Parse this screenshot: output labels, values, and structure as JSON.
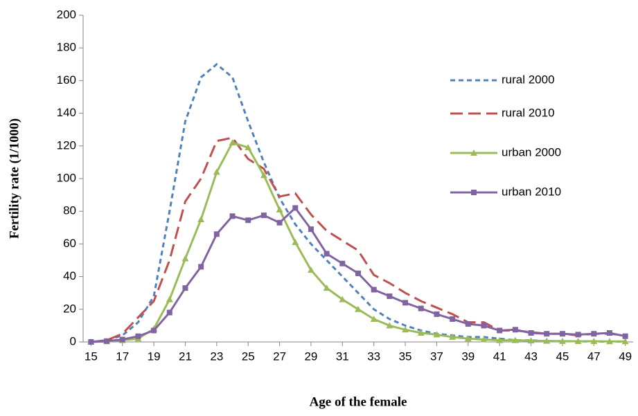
{
  "chart_data": {
    "type": "line",
    "x_label": "Age of the female",
    "y_label": "Fertility rate (1/1000)",
    "x": [
      15,
      16,
      17,
      18,
      19,
      20,
      21,
      22,
      23,
      24,
      25,
      26,
      27,
      28,
      29,
      30,
      31,
      32,
      33,
      34,
      35,
      36,
      37,
      38,
      39,
      40,
      41,
      42,
      43,
      44,
      45,
      46,
      47,
      48,
      49
    ],
    "xlim": [
      14.5,
      49.5
    ],
    "xticks": [
      15,
      17,
      19,
      21,
      23,
      25,
      27,
      29,
      31,
      33,
      35,
      37,
      39,
      41,
      43,
      45,
      47,
      49
    ],
    "ylim": [
      0,
      200
    ],
    "yticks": [
      0,
      20,
      40,
      60,
      80,
      100,
      120,
      140,
      160,
      180,
      200
    ],
    "legend": "right",
    "series": [
      {
        "name": "rural 2000",
        "color": "#4f81bd",
        "dash": "short",
        "marker": "none",
        "values": [
          0,
          1,
          4,
          12,
          28,
          80,
          135,
          162,
          170,
          162,
          135,
          110,
          88,
          72,
          60,
          50,
          40,
          30,
          20,
          14,
          10,
          7,
          5,
          4,
          3,
          3,
          2,
          1,
          1,
          0.5,
          0.5,
          0.3,
          0.3,
          0.2,
          0.2
        ]
      },
      {
        "name": "rural 2010",
        "color": "#c0504d",
        "dash": "long",
        "marker": "none",
        "values": [
          0,
          1,
          5,
          15,
          25,
          50,
          86,
          100,
          123,
          125,
          112,
          106,
          89,
          91,
          78,
          68,
          62,
          56,
          41,
          36,
          30,
          25,
          21,
          17,
          12,
          12,
          7,
          7,
          6,
          5,
          5,
          4,
          5,
          5,
          4
        ]
      },
      {
        "name": "urban 2000",
        "color": "#9bbb59",
        "dash": "solid",
        "marker": "triangle",
        "values": [
          0,
          0.3,
          1,
          2,
          8,
          26,
          51,
          75,
          104,
          122,
          119,
          102,
          81,
          61,
          44,
          33,
          26,
          20,
          14,
          10,
          7.5,
          5.5,
          4.5,
          3,
          2,
          1.5,
          1,
          1,
          0.8,
          0.6,
          0.5,
          0.4,
          0.4,
          0.3,
          0.3
        ]
      },
      {
        "name": "urban 2010",
        "color": "#8064a2",
        "dash": "solid",
        "marker": "square",
        "values": [
          0,
          0.5,
          1.5,
          3.5,
          7,
          18,
          33,
          46,
          66,
          77,
          74.5,
          77.5,
          73,
          82,
          69,
          54,
          48,
          42,
          32,
          28,
          24,
          20.5,
          17,
          14,
          11,
          10,
          7,
          7.5,
          5.5,
          5,
          5,
          4.5,
          5,
          5.5,
          3.5
        ]
      }
    ]
  }
}
